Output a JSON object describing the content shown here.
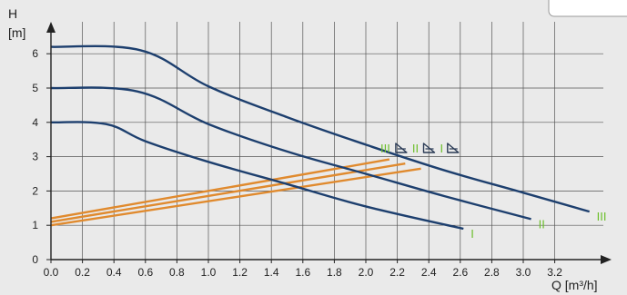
{
  "chart_data": {
    "type": "line",
    "xlabel": "Q [m³/h]",
    "ylabel": "H\n[m]",
    "ylabel_lines": [
      "H",
      "[m]"
    ],
    "xlim": [
      0,
      3.4
    ],
    "ylim": [
      0,
      6.7
    ],
    "x_ticks": [
      "0.0",
      "0.2",
      "0.4",
      "0.6",
      "0.8",
      "1.0",
      "1.2",
      "1.4",
      "1.6",
      "1.8",
      "2.0",
      "2.2",
      "2.4",
      "2.6",
      "2.8",
      "3.0",
      "3.2"
    ],
    "x_tick_values": [
      0,
      0.2,
      0.4,
      0.6,
      0.8,
      1.0,
      1.2,
      1.4,
      1.6,
      1.8,
      2.0,
      2.2,
      2.4,
      2.6,
      2.8,
      3.0,
      3.2
    ],
    "y_ticks": [
      "0",
      "1",
      "2",
      "3",
      "4",
      "5",
      "6"
    ],
    "y_tick_values": [
      0,
      1,
      2,
      3,
      4,
      5,
      6
    ],
    "grid": true,
    "colors": {
      "pump_curve": "#1d3f6e",
      "system_curve": "#e08a2e",
      "label_green": "#6cbf2a",
      "label_dark": "#2a3a55"
    },
    "pump_series": [
      {
        "label": "I",
        "x": [
          0,
          0.35,
          0.6,
          1.0,
          1.5,
          2.0,
          2.62
        ],
        "y": [
          4.0,
          3.95,
          3.45,
          2.85,
          2.2,
          1.55,
          0.9
        ]
      },
      {
        "label": "II",
        "x": [
          0,
          0.55,
          1.0,
          1.5,
          2.0,
          2.5,
          3.05
        ],
        "y": [
          5.0,
          4.9,
          3.95,
          3.15,
          2.5,
          1.85,
          1.18
        ]
      },
      {
        "label": "III",
        "x": [
          0,
          0.57,
          1.0,
          1.5,
          2.0,
          2.5,
          3.0,
          3.42
        ],
        "y": [
          6.2,
          6.1,
          5.05,
          4.15,
          3.35,
          2.6,
          1.95,
          1.4
        ]
      }
    ],
    "system_series": [
      {
        "x": [
          0,
          2.15
        ],
        "y": [
          1.2,
          2.92
        ]
      },
      {
        "x": [
          0,
          2.25
        ],
        "y": [
          1.1,
          2.8
        ]
      },
      {
        "x": [
          0,
          2.35
        ],
        "y": [
          1.0,
          2.65
        ]
      }
    ],
    "legend_labels": [
      "III",
      "II",
      "I"
    ]
  }
}
